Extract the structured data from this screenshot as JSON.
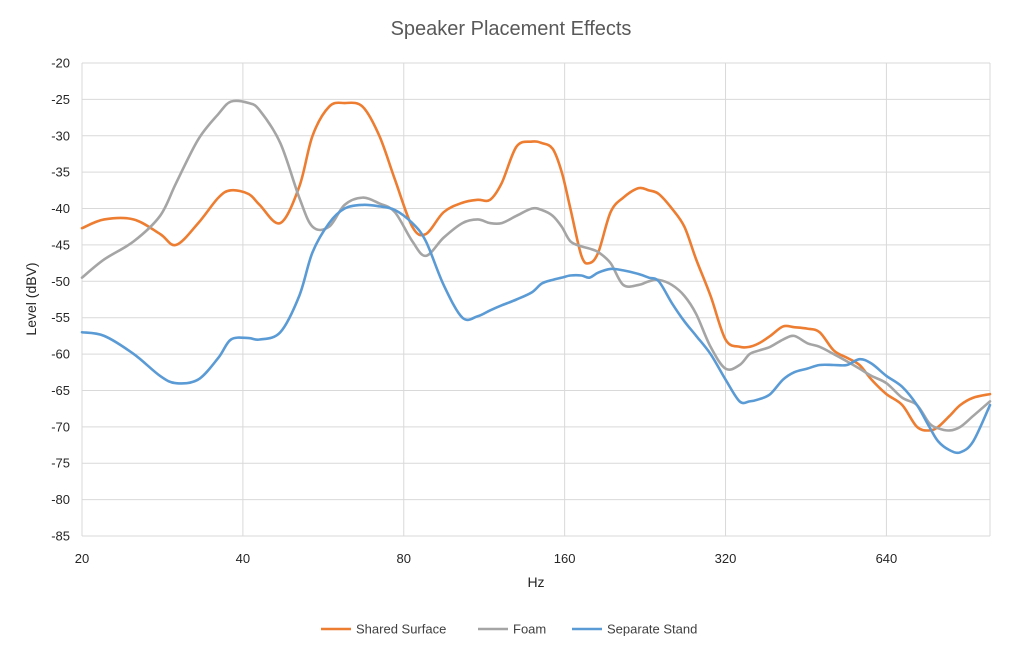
{
  "chart_data": {
    "type": "line",
    "title": "Speaker Placement Effects",
    "xlabel": "Hz",
    "ylabel": "Level (dBV)",
    "x_scale": "log2",
    "xlim": [
      20,
      1000
    ],
    "ylim": [
      -85,
      -20
    ],
    "x_ticks": [
      20,
      40,
      80,
      160,
      320,
      640
    ],
    "y_ticks": [
      -20,
      -25,
      -30,
      -35,
      -40,
      -45,
      -50,
      -55,
      -60,
      -65,
      -70,
      -75,
      -80,
      -85
    ],
    "grid": true,
    "legend_position": "bottom",
    "series": [
      {
        "name": "Shared Surface",
        "color": "#ED7D31",
        "x": [
          20,
          22,
          25,
          28,
          30,
          33,
          36,
          38,
          41,
          43,
          47,
          51,
          54,
          58,
          62,
          67,
          72,
          77,
          83,
          88,
          95,
          103,
          110,
          116,
          122,
          130,
          139,
          145,
          152,
          158,
          164,
          172,
          178,
          185,
          195,
          206,
          220,
          230,
          240,
          254,
          268,
          282,
          300,
          320,
          340,
          355,
          370,
          388,
          410,
          430,
          455,
          480,
          510,
          540,
          570,
          600,
          640,
          685,
          730,
          770,
          800,
          840,
          880,
          930,
          1000
        ],
        "y": [
          -42.7,
          -41.5,
          -41.5,
          -43.5,
          -45,
          -42,
          -38.5,
          -37.5,
          -38,
          -39.5,
          -42,
          -37,
          -30,
          -26,
          -25.5,
          -26,
          -30,
          -36,
          -42.5,
          -43.5,
          -40.5,
          -39.2,
          -38.8,
          -38.8,
          -36.5,
          -31.5,
          -30.8,
          -31,
          -31.8,
          -35,
          -40,
          -46.5,
          -47.5,
          -46,
          -40.5,
          -38.5,
          -37.2,
          -37.5,
          -38,
          -40,
          -42.5,
          -47,
          -52,
          -58,
          -59,
          -59,
          -58.5,
          -57.5,
          -56.2,
          -56.3,
          -56.5,
          -57,
          -59.5,
          -60.5,
          -61.5,
          -63.5,
          -65.5,
          -67,
          -70,
          -70.5,
          -70,
          -68.5,
          -67,
          -66,
          -65.5
        ]
      },
      {
        "name": "Foam",
        "color": "#A5A5A5",
        "x": [
          20,
          22,
          25,
          28,
          30,
          33,
          36,
          38,
          41,
          43,
          47,
          51,
          54,
          58,
          62,
          67,
          72,
          77,
          83,
          88,
          95,
          103,
          110,
          116,
          122,
          130,
          139,
          145,
          152,
          158,
          164,
          172,
          178,
          185,
          195,
          206,
          220,
          230,
          240,
          254,
          268,
          282,
          300,
          320,
          340,
          355,
          370,
          388,
          410,
          430,
          455,
          480,
          510,
          540,
          570,
          600,
          640,
          685,
          730,
          770,
          800,
          840,
          880,
          930,
          1000
        ],
        "y": [
          -49.5,
          -47,
          -44.5,
          -41,
          -36.5,
          -30.5,
          -27,
          -25.3,
          -25.5,
          -26.5,
          -31,
          -38.5,
          -42.5,
          -42.5,
          -39.5,
          -38.5,
          -39.3,
          -40.5,
          -44.5,
          -46.5,
          -44,
          -42,
          -41.5,
          -42,
          -42,
          -41,
          -40,
          -40.2,
          -41,
          -42.5,
          -44.5,
          -45.2,
          -45.5,
          -46,
          -47.5,
          -50.5,
          -50.5,
          -50,
          -49.8,
          -50.5,
          -52,
          -54.5,
          -59,
          -62,
          -61.5,
          -60,
          -59.5,
          -59,
          -58,
          -57.5,
          -58.5,
          -59,
          -60,
          -61,
          -62,
          -63,
          -64,
          -66,
          -67,
          -69.5,
          -70.2,
          -70.5,
          -70,
          -68.5,
          -66.5
        ]
      },
      {
        "name": "Separate Stand",
        "color": "#5B9BD5",
        "x": [
          20,
          22,
          25,
          28,
          30,
          33,
          36,
          38,
          41,
          43,
          47,
          51,
          54,
          58,
          62,
          67,
          72,
          77,
          83,
          88,
          95,
          103,
          110,
          116,
          122,
          130,
          139,
          145,
          152,
          158,
          164,
          172,
          178,
          185,
          195,
          206,
          220,
          230,
          240,
          254,
          268,
          282,
          300,
          320,
          340,
          355,
          370,
          388,
          410,
          430,
          455,
          480,
          510,
          540,
          570,
          600,
          640,
          685,
          730,
          770,
          800,
          840,
          880,
          930,
          1000
        ],
        "y": [
          -57,
          -57.5,
          -60,
          -63,
          -64,
          -63.5,
          -60.5,
          -58,
          -57.8,
          -58,
          -57,
          -52,
          -46,
          -42,
          -40,
          -39.5,
          -39.7,
          -40.2,
          -42,
          -44.5,
          -50.5,
          -55,
          -54.8,
          -54,
          -53.3,
          -52.5,
          -51.5,
          -50.3,
          -49.8,
          -49.5,
          -49.2,
          -49.2,
          -49.5,
          -48.8,
          -48.3,
          -48.5,
          -49,
          -49.5,
          -50,
          -53,
          -55.5,
          -57.5,
          -60,
          -63.5,
          -66.5,
          -66.5,
          -66.2,
          -65.5,
          -63.5,
          -62.5,
          -62,
          -61.5,
          -61.5,
          -61.5,
          -60.7,
          -61.3,
          -63,
          -64.5,
          -67,
          -70,
          -72,
          -73.2,
          -73.5,
          -72,
          -67
        ]
      }
    ]
  }
}
